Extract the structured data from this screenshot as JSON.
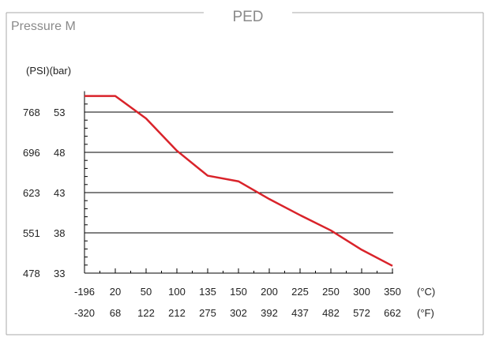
{
  "panel": {
    "title": "PED",
    "subtitle": "Pressure M"
  },
  "colors": {
    "frame": "#a8a8a8",
    "line": "#d9232a",
    "grid": "#000000",
    "text": "#222222",
    "title_text": "#8a8a8a"
  },
  "chart_data": {
    "type": "line",
    "title": "PED",
    "subtitle": "Pressure M",
    "y_axis_header": "(PSI)(bar)",
    "x_unit_celsius": "(°C)",
    "x_unit_fahrenheit": "(°F)",
    "x_ticks_celsius": [
      "-196",
      "20",
      "50",
      "100",
      "135",
      "150",
      "200",
      "225",
      "250",
      "300",
      "350"
    ],
    "x_ticks_fahrenheit": [
      "-320",
      "68",
      "122",
      "212",
      "275",
      "302",
      "392",
      "437",
      "482",
      "572",
      "662"
    ],
    "y_ticks": [
      {
        "bar": 33,
        "psi": "478",
        "bar_label": "33"
      },
      {
        "bar": 38,
        "psi": "551",
        "bar_label": "38"
      },
      {
        "bar": 43,
        "psi": "623",
        "bar_label": "43"
      },
      {
        "bar": 48,
        "psi": "696",
        "bar_label": "48"
      },
      {
        "bar": 53,
        "psi": "768",
        "bar_label": "53"
      }
    ],
    "ylim_bar": [
      33,
      55.2
    ],
    "grid": "horizontal",
    "series": [
      {
        "x_tick_index": [
          0,
          1,
          2,
          3,
          4,
          5,
          6,
          7,
          8,
          9,
          10
        ],
        "values_bar": [
          55.0,
          55.0,
          52.2,
          48.2,
          45.1,
          44.4,
          42.2,
          40.2,
          38.3,
          35.9,
          33.9
        ]
      }
    ]
  }
}
